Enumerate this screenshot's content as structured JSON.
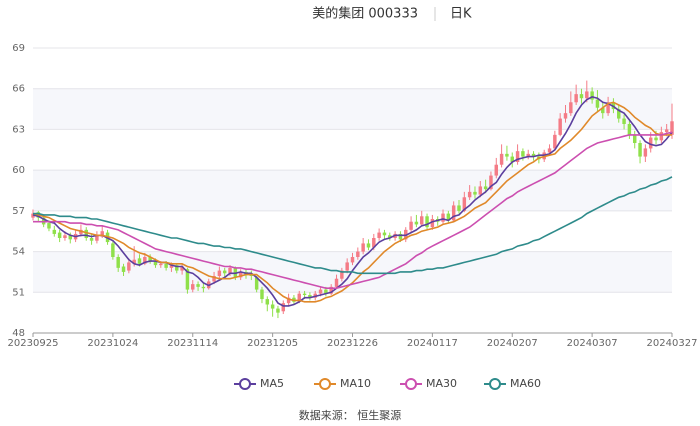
{
  "chart_data": {
    "type": "candlestick",
    "title": "美的集团 000333",
    "subtitle": "日K",
    "source": "数据来源： 恒生聚源",
    "categories": [
      "20230925",
      null,
      null,
      null,
      null,
      null,
      null,
      null,
      null,
      null,
      null,
      null,
      null,
      null,
      null,
      "20231024",
      null,
      null,
      null,
      null,
      null,
      null,
      null,
      null,
      null,
      null,
      null,
      null,
      null,
      null,
      "20231114",
      null,
      null,
      null,
      null,
      null,
      null,
      null,
      null,
      null,
      null,
      null,
      null,
      null,
      null,
      "20231205",
      null,
      null,
      null,
      null,
      null,
      null,
      null,
      null,
      null,
      null,
      null,
      null,
      null,
      null,
      "20231226",
      null,
      null,
      null,
      null,
      null,
      null,
      null,
      null,
      null,
      null,
      null,
      null,
      null,
      null,
      "20240117",
      null,
      null,
      null,
      null,
      null,
      null,
      null,
      null,
      null,
      null,
      null,
      null,
      null,
      null,
      "20240207",
      null,
      null,
      null,
      null,
      null,
      null,
      null,
      null,
      null,
      null,
      null,
      null,
      null,
      null,
      "20240307",
      null,
      null,
      null,
      null,
      null,
      null,
      null,
      null,
      null,
      null,
      null,
      null,
      null,
      null,
      "20240327"
    ],
    "open": [
      56.5,
      56.9,
      56.5,
      56.1,
      55.6,
      55.4,
      55.0,
      55.2,
      54.9,
      55.3,
      55.6,
      55.0,
      54.8,
      55.1,
      55.4,
      54.6,
      53.6,
      52.9,
      52.6,
      53.1,
      53.5,
      53.1,
      53.6,
      53.3,
      53.0,
      53.1,
      52.8,
      53.0,
      52.6,
      52.7,
      51.2,
      51.6,
      51.4,
      51.3,
      51.8,
      52.2,
      52.6,
      52.4,
      52.8,
      52.1,
      52.5,
      52.3,
      52.1,
      51.2,
      50.5,
      50.1,
      49.8,
      49.6,
      50.2,
      50.6,
      50.3,
      50.9,
      50.8,
      50.6,
      50.9,
      51.2,
      50.9,
      51.4,
      52.0,
      52.6,
      53.2,
      53.6,
      54.0,
      54.6,
      54.3,
      55.0,
      55.4,
      55.2,
      55.0,
      55.3,
      54.9,
      55.6,
      56.2,
      56.0,
      56.6,
      55.8,
      56.4,
      56.2,
      56.8,
      56.3,
      57.4,
      57.0,
      58.0,
      58.4,
      58.2,
      58.8,
      58.6,
      59.6,
      60.4,
      61.2,
      61.0,
      60.6,
      61.4,
      61.0,
      61.2,
      61.0,
      60.8,
      61.3,
      61.6,
      62.6,
      63.8,
      64.2,
      65.0,
      65.6,
      65.3,
      65.8,
      65.2,
      64.6,
      64.2,
      65.0,
      64.5,
      63.8,
      63.4,
      62.6,
      62.0,
      61.0,
      61.6,
      62.4,
      62.2,
      62.8,
      62.6
    ],
    "high": [
      57.1,
      57.0,
      56.7,
      56.3,
      55.9,
      55.6,
      55.5,
      55.4,
      55.6,
      56.0,
      55.8,
      55.3,
      55.5,
      55.9,
      55.6,
      54.8,
      53.8,
      53.1,
      53.5,
      54.4,
      53.8,
      53.9,
      53.8,
      53.5,
      53.3,
      53.3,
      53.2,
      53.1,
      53.1,
      52.8,
      51.9,
      51.8,
      51.7,
      52.0,
      52.5,
      52.9,
      52.8,
      53.0,
      52.9,
      52.7,
      52.7,
      52.6,
      52.2,
      51.4,
      50.7,
      50.4,
      50.0,
      50.4,
      50.9,
      50.8,
      51.1,
      51.1,
      51.0,
      51.1,
      51.4,
      51.4,
      51.6,
      52.3,
      52.8,
      53.5,
      53.9,
      54.3,
      55.0,
      54.9,
      55.3,
      55.7,
      55.6,
      55.4,
      55.5,
      55.5,
      55.8,
      56.6,
      56.7,
      57.0,
      56.8,
      56.7,
      56.6,
      57.1,
      57.0,
      57.7,
      57.8,
      58.4,
      58.9,
      58.8,
      59.2,
      59.3,
      59.9,
      60.9,
      61.9,
      61.8,
      61.3,
      61.9,
      61.6,
      61.5,
      61.4,
      61.3,
      61.5,
      61.9,
      62.9,
      64.2,
      64.8,
      65.8,
      66.3,
      66.0,
      66.6,
      66.1,
      65.9,
      65.0,
      65.4,
      65.3,
      64.8,
      64.1,
      63.7,
      62.9,
      62.2,
      61.9,
      62.8,
      62.9,
      63.2,
      63.4,
      64.9
    ],
    "low": [
      56.3,
      56.2,
      55.8,
      55.5,
      55.1,
      54.7,
      54.8,
      54.6,
      54.7,
      55.1,
      54.8,
      54.5,
      54.6,
      55.0,
      54.5,
      53.4,
      52.5,
      52.2,
      52.4,
      52.9,
      52.9,
      53.0,
      53.1,
      52.8,
      52.8,
      52.6,
      52.5,
      52.4,
      52.3,
      50.9,
      51.0,
      51.1,
      51.0,
      51.2,
      51.6,
      52.0,
      52.1,
      52.2,
      51.9,
      51.9,
      52.0,
      51.9,
      51.0,
      50.2,
      49.6,
      49.2,
      49.1,
      49.4,
      50.0,
      50.1,
      50.2,
      50.5,
      50.4,
      50.4,
      50.7,
      50.7,
      50.8,
      51.3,
      51.8,
      52.4,
      53.0,
      53.4,
      53.8,
      54.1,
      54.1,
      54.8,
      54.9,
      54.8,
      54.8,
      54.7,
      54.7,
      55.4,
      55.8,
      55.9,
      55.6,
      55.6,
      55.9,
      56.0,
      56.1,
      56.2,
      56.8,
      56.9,
      57.8,
      57.9,
      58.0,
      58.3,
      58.5,
      59.4,
      60.2,
      60.7,
      60.2,
      60.4,
      60.7,
      60.8,
      60.7,
      60.5,
      60.6,
      61.1,
      61.5,
      62.5,
      63.5,
      64.0,
      64.8,
      64.9,
      65.0,
      64.9,
      64.3,
      63.8,
      64.0,
      64.2,
      63.5,
      63.0,
      62.3,
      61.6,
      60.5,
      60.6,
      61.3,
      61.9,
      62.0,
      62.5,
      62.3
    ],
    "close": [
      56.8,
      56.5,
      56.0,
      55.7,
      55.3,
      55.0,
      55.2,
      54.9,
      55.3,
      55.6,
      55.0,
      54.8,
      55.2,
      55.5,
      54.7,
      53.6,
      52.8,
      52.5,
      53.2,
      53.4,
      53.1,
      53.6,
      53.3,
      53.0,
      53.1,
      52.8,
      53.0,
      52.6,
      52.9,
      51.2,
      51.6,
      51.4,
      51.3,
      51.8,
      52.2,
      52.6,
      52.4,
      52.8,
      52.1,
      52.5,
      52.3,
      52.2,
      51.2,
      50.5,
      50.1,
      49.8,
      49.5,
      50.2,
      50.6,
      50.3,
      50.9,
      50.8,
      50.6,
      50.9,
      51.2,
      50.9,
      51.4,
      52.0,
      52.6,
      53.2,
      53.6,
      54.0,
      54.6,
      54.3,
      55.0,
      55.4,
      55.2,
      55.0,
      55.3,
      54.9,
      55.6,
      56.2,
      56.0,
      56.6,
      55.8,
      56.4,
      56.2,
      56.8,
      56.3,
      57.4,
      57.0,
      58.0,
      58.4,
      58.2,
      58.8,
      58.6,
      59.6,
      60.4,
      61.2,
      61.0,
      60.6,
      61.4,
      61.0,
      61.2,
      61.0,
      60.8,
      61.3,
      61.6,
      62.6,
      63.8,
      64.2,
      65.0,
      65.6,
      65.3,
      65.8,
      65.2,
      64.6,
      64.2,
      65.0,
      64.5,
      63.8,
      63.4,
      62.6,
      62.0,
      61.0,
      61.6,
      62.4,
      62.2,
      62.8,
      63.0,
      63.6
    ],
    "up_color": "#f47b86",
    "down_color": "#8fe04a",
    "series": [
      {
        "name": "MA5",
        "color": "#5b3f9e",
        "values": [
          56.7,
          56.6,
          56.4,
          56.2,
          56.1,
          55.7,
          55.4,
          55.2,
          55.1,
          55.2,
          55.2,
          55.1,
          55.2,
          55.2,
          55.0,
          54.8,
          54.4,
          53.9,
          53.4,
          53.1,
          53.0,
          53.2,
          53.3,
          53.3,
          53.2,
          53.2,
          53.0,
          52.9,
          52.9,
          52.5,
          52.4,
          52.1,
          51.7,
          51.5,
          51.7,
          51.9,
          52.1,
          52.4,
          52.4,
          52.5,
          52.4,
          52.4,
          52.1,
          51.7,
          51.3,
          50.8,
          50.2,
          50.0,
          50.0,
          50.1,
          50.3,
          50.6,
          50.6,
          50.7,
          50.8,
          50.9,
          51.0,
          51.3,
          51.6,
          52.0,
          52.6,
          53.1,
          53.6,
          53.9,
          54.3,
          54.7,
          54.9,
          55.0,
          55.2,
          55.2,
          55.2,
          55.4,
          55.6,
          55.9,
          56.0,
          56.2,
          56.3,
          56.4,
          56.3,
          56.6,
          56.7,
          57.1,
          57.4,
          57.8,
          58.1,
          58.4,
          58.8,
          59.1,
          59.7,
          60.2,
          60.6,
          60.8,
          60.9,
          61.0,
          61.0,
          61.1,
          61.1,
          61.2,
          61.5,
          62.1,
          62.7,
          63.4,
          64.2,
          64.8,
          65.2,
          65.4,
          65.3,
          65.0,
          64.9,
          64.7,
          64.4,
          64.2,
          63.7,
          63.2,
          62.6,
          62.1,
          61.9,
          61.8,
          61.9,
          62.3,
          62.8
        ]
      },
      {
        "name": "MA10",
        "color": "#e0892a",
        "values": [
          56.8,
          56.7,
          56.6,
          56.5,
          56.3,
          56.1,
          55.9,
          55.7,
          55.6,
          55.5,
          55.4,
          55.3,
          55.2,
          55.2,
          55.1,
          55.0,
          54.8,
          54.6,
          54.3,
          54.1,
          53.9,
          53.8,
          53.6,
          53.4,
          53.2,
          53.2,
          53.1,
          53.1,
          53.1,
          52.9,
          52.8,
          52.6,
          52.4,
          52.2,
          52.1,
          52.0,
          52.0,
          52.0,
          52.1,
          52.2,
          52.3,
          52.3,
          52.3,
          52.0,
          51.7,
          51.3,
          51.0,
          50.7,
          50.5,
          50.4,
          50.4,
          50.3,
          50.3,
          50.3,
          50.4,
          50.6,
          50.7,
          50.9,
          51.1,
          51.4,
          51.7,
          52.1,
          52.5,
          52.8,
          53.2,
          53.6,
          54.0,
          54.3,
          54.6,
          54.8,
          55.0,
          55.2,
          55.3,
          55.5,
          55.6,
          55.7,
          55.8,
          56.0,
          56.1,
          56.2,
          56.4,
          56.6,
          56.9,
          57.2,
          57.4,
          57.6,
          58.0,
          58.4,
          58.8,
          59.2,
          59.5,
          59.8,
          60.1,
          60.4,
          60.6,
          60.9,
          61.0,
          61.1,
          61.2,
          61.6,
          61.9,
          62.2,
          62.6,
          63.0,
          63.5,
          64.0,
          64.3,
          64.6,
          64.9,
          65.0,
          64.8,
          64.6,
          64.3,
          63.9,
          63.6,
          63.3,
          63.1,
          62.7,
          62.6,
          62.6,
          62.6
        ]
      },
      {
        "name": "MA30",
        "color": "#cc4fb0",
        "values": [
          56.2,
          56.2,
          56.2,
          56.2,
          56.2,
          56.2,
          56.2,
          56.1,
          56.1,
          56.1,
          56.0,
          56.0,
          55.9,
          55.9,
          55.8,
          55.7,
          55.6,
          55.4,
          55.2,
          55.0,
          54.8,
          54.6,
          54.4,
          54.2,
          54.1,
          54.0,
          53.9,
          53.8,
          53.7,
          53.6,
          53.5,
          53.4,
          53.3,
          53.2,
          53.1,
          53.0,
          52.9,
          52.9,
          52.8,
          52.8,
          52.7,
          52.7,
          52.6,
          52.5,
          52.4,
          52.3,
          52.2,
          52.1,
          52.0,
          51.9,
          51.8,
          51.7,
          51.6,
          51.5,
          51.4,
          51.3,
          51.3,
          51.3,
          51.4,
          51.5,
          51.6,
          51.7,
          51.8,
          51.9,
          52.0,
          52.1,
          52.3,
          52.5,
          52.7,
          52.9,
          53.1,
          53.4,
          53.7,
          53.9,
          54.2,
          54.4,
          54.6,
          54.8,
          55.0,
          55.2,
          55.4,
          55.6,
          55.8,
          56.1,
          56.4,
          56.7,
          57.0,
          57.3,
          57.6,
          57.9,
          58.1,
          58.4,
          58.6,
          58.8,
          59.0,
          59.2,
          59.4,
          59.6,
          59.8,
          60.1,
          60.4,
          60.7,
          61.0,
          61.3,
          61.6,
          61.8,
          62.0,
          62.1,
          62.2,
          62.3,
          62.4,
          62.5,
          62.6,
          62.6,
          62.6,
          62.6,
          62.6,
          62.6,
          62.6,
          62.7,
          62.8
        ]
      },
      {
        "name": "MA60",
        "color": "#2e8b8b",
        "values": [
          56.8,
          56.8,
          56.7,
          56.7,
          56.7,
          56.6,
          56.6,
          56.6,
          56.5,
          56.5,
          56.5,
          56.4,
          56.4,
          56.3,
          56.2,
          56.1,
          56.0,
          55.9,
          55.8,
          55.7,
          55.6,
          55.5,
          55.4,
          55.3,
          55.2,
          55.1,
          55.0,
          55.0,
          54.9,
          54.8,
          54.7,
          54.6,
          54.6,
          54.5,
          54.4,
          54.4,
          54.3,
          54.3,
          54.2,
          54.2,
          54.1,
          54.0,
          53.9,
          53.8,
          53.7,
          53.6,
          53.5,
          53.4,
          53.3,
          53.2,
          53.1,
          53.0,
          52.9,
          52.8,
          52.8,
          52.7,
          52.6,
          52.6,
          52.5,
          52.5,
          52.5,
          52.4,
          52.4,
          52.4,
          52.4,
          52.4,
          52.4,
          52.4,
          52.4,
          52.5,
          52.5,
          52.5,
          52.6,
          52.6,
          52.7,
          52.7,
          52.8,
          52.8,
          52.9,
          53.0,
          53.1,
          53.2,
          53.3,
          53.4,
          53.5,
          53.6,
          53.7,
          53.8,
          54.0,
          54.1,
          54.2,
          54.4,
          54.5,
          54.6,
          54.8,
          54.9,
          55.1,
          55.3,
          55.5,
          55.7,
          55.9,
          56.1,
          56.3,
          56.5,
          56.8,
          57.0,
          57.2,
          57.4,
          57.6,
          57.8,
          58.0,
          58.1,
          58.3,
          58.4,
          58.6,
          58.7,
          58.9,
          59.0,
          59.2,
          59.3,
          59.5
        ]
      }
    ],
    "ylim": [
      48,
      69
    ],
    "yticks": [
      48,
      51,
      54,
      57,
      60,
      63,
      66,
      69
    ],
    "grid": true
  }
}
